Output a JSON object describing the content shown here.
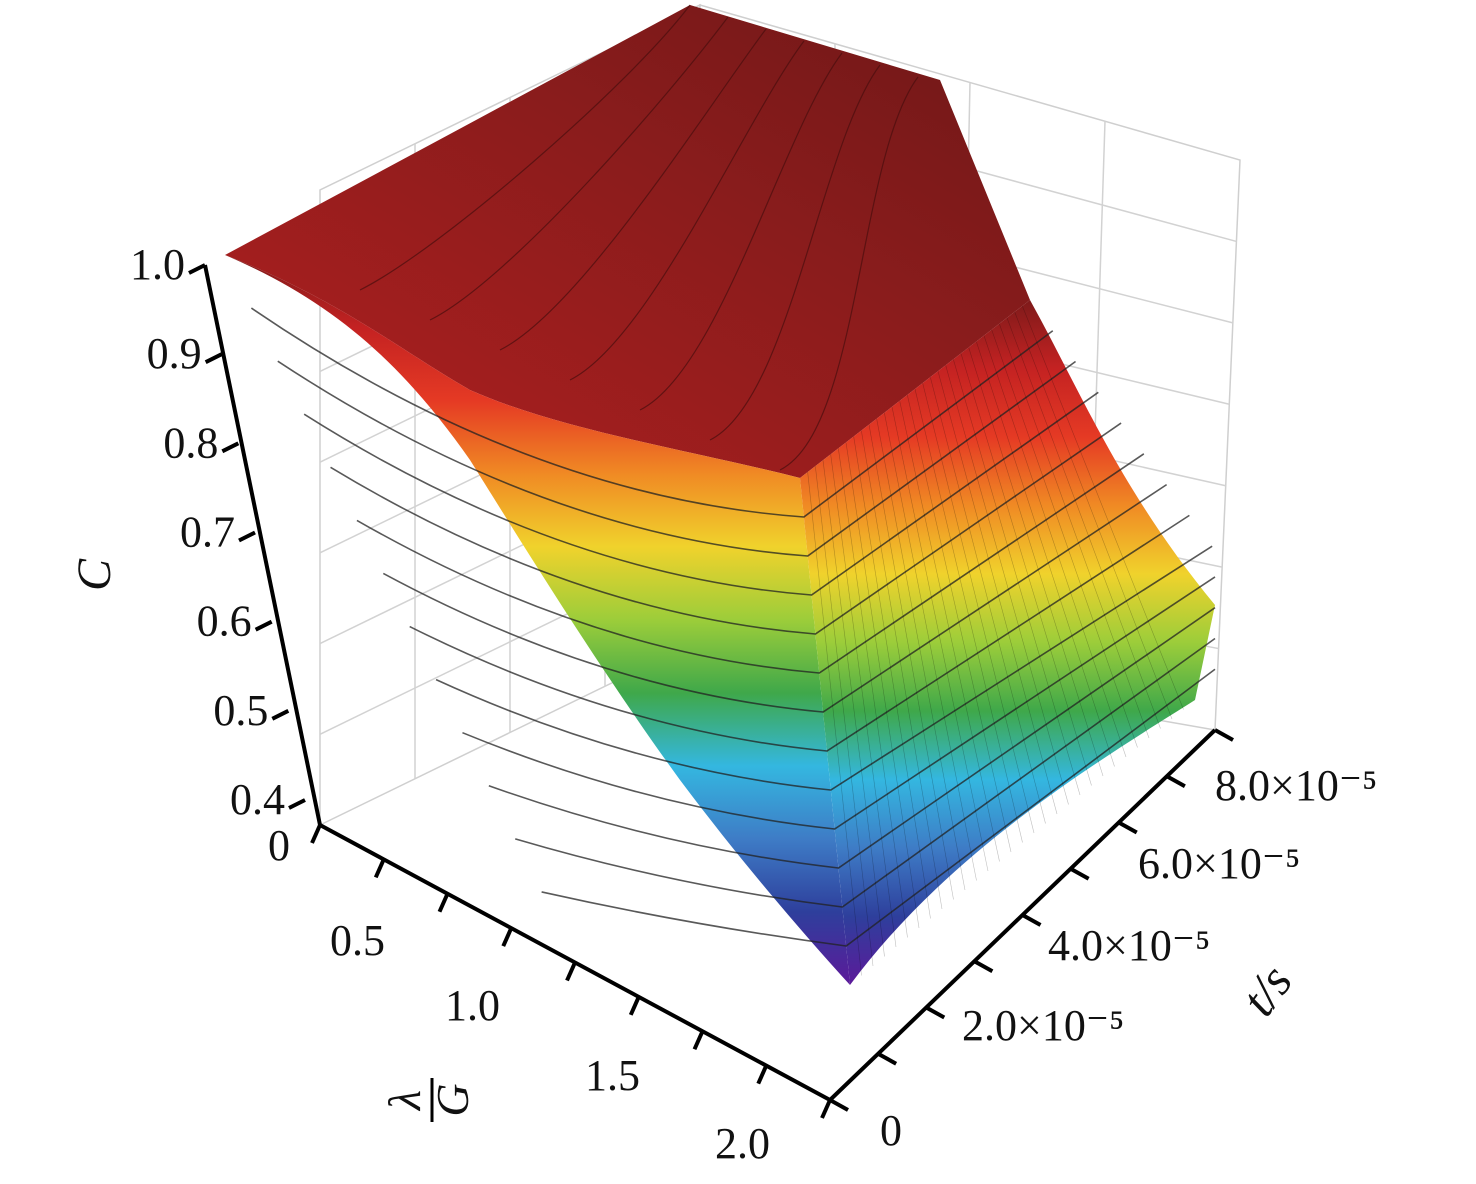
{
  "chart_data": {
    "type": "surface",
    "zlabel": "C",
    "xlabel_main": "λ",
    "xlabel_sub": "G",
    "ylabel": "t/s",
    "z_ticks": [
      "0.4",
      "0.5",
      "0.6",
      "0.7",
      "0.8",
      "0.9",
      "1.0"
    ],
    "x_ticks": [
      "0",
      "0.5",
      "1.0",
      "1.5",
      "2.0"
    ],
    "y_ticks": [
      "0",
      "2.0×10⁻⁵",
      "4.0×10⁻⁵",
      "6.0×10⁻⁵",
      "8.0×10⁻⁵"
    ],
    "xlim": [
      0,
      2.0
    ],
    "ylim": [
      0,
      8.5e-05
    ],
    "zlim": [
      0.4,
      1.0
    ],
    "colormap": [
      "#5c1a9a",
      "#2e3f9c",
      "#3e7cc6",
      "#34b7e0",
      "#3fa84a",
      "#9ccd3a",
      "#f0d22c",
      "#f08a24",
      "#e53a24",
      "#c42222",
      "#7e1a1a"
    ],
    "surface_profile": {
      "x": [
        0,
        0.25,
        0.5,
        0.75,
        1.0,
        1.25,
        1.5,
        1.75,
        2.0
      ],
      "C_at_t_max": [
        1.0,
        0.99,
        0.97,
        0.93,
        0.86,
        0.78,
        0.7,
        0.6,
        0.52
      ],
      "C_at_t_min": [
        1.0,
        0.97,
        0.88,
        0.78,
        0.68,
        0.58,
        0.5,
        0.43,
        0.38
      ]
    }
  }
}
